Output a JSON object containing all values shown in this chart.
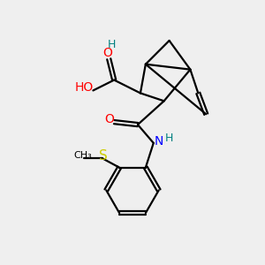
{
  "background_color": "#efefef",
  "atom_colors": {
    "O": "#ff0000",
    "N": "#0000ff",
    "S": "#cccc00",
    "C": "#000000",
    "H": "#008080"
  },
  "figsize": [
    3.0,
    3.0
  ],
  "dpi": 100,
  "lw": 1.6
}
